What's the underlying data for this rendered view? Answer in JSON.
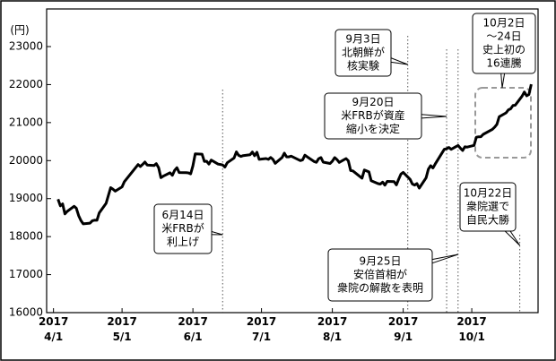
{
  "chart_data": {
    "type": "line",
    "y_label": "(円)",
    "color": "#000000",
    "x": [
      "2017-04-03",
      "2017-04-04",
      "2017-04-05",
      "2017-04-06",
      "2017-04-07",
      "2017-04-10",
      "2017-04-11",
      "2017-04-12",
      "2017-04-13",
      "2017-04-14",
      "2017-04-17",
      "2017-04-18",
      "2017-04-19",
      "2017-04-20",
      "2017-04-21",
      "2017-04-24",
      "2017-04-25",
      "2017-04-26",
      "2017-04-27",
      "2017-04-28",
      "2017-05-01",
      "2017-05-02",
      "2017-05-08",
      "2017-05-09",
      "2017-05-10",
      "2017-05-11",
      "2017-05-12",
      "2017-05-15",
      "2017-05-16",
      "2017-05-17",
      "2017-05-18",
      "2017-05-19",
      "2017-05-22",
      "2017-05-23",
      "2017-05-24",
      "2017-05-25",
      "2017-05-26",
      "2017-05-29",
      "2017-05-30",
      "2017-05-31",
      "2017-06-01",
      "2017-06-02",
      "2017-06-05",
      "2017-06-06",
      "2017-06-07",
      "2017-06-08",
      "2017-06-09",
      "2017-06-12",
      "2017-06-13",
      "2017-06-14",
      "2017-06-15",
      "2017-06-16",
      "2017-06-19",
      "2017-06-20",
      "2017-06-21",
      "2017-06-22",
      "2017-06-23",
      "2017-06-26",
      "2017-06-27",
      "2017-06-28",
      "2017-06-29",
      "2017-06-30",
      "2017-07-03",
      "2017-07-04",
      "2017-07-05",
      "2017-07-06",
      "2017-07-07",
      "2017-07-10",
      "2017-07-11",
      "2017-07-12",
      "2017-07-13",
      "2017-07-14",
      "2017-07-18",
      "2017-07-19",
      "2017-07-20",
      "2017-07-21",
      "2017-07-24",
      "2017-07-25",
      "2017-07-26",
      "2017-07-27",
      "2017-07-28",
      "2017-07-31",
      "2017-08-01",
      "2017-08-02",
      "2017-08-03",
      "2017-08-04",
      "2017-08-07",
      "2017-08-08",
      "2017-08-09",
      "2017-08-10",
      "2017-08-14",
      "2017-08-15",
      "2017-08-16",
      "2017-08-17",
      "2017-08-18",
      "2017-08-21",
      "2017-08-22",
      "2017-08-23",
      "2017-08-24",
      "2017-08-25",
      "2017-08-28",
      "2017-08-29",
      "2017-08-30",
      "2017-08-31",
      "2017-09-01",
      "2017-09-04",
      "2017-09-05",
      "2017-09-06",
      "2017-09-07",
      "2017-09-08",
      "2017-09-11",
      "2017-09-12",
      "2017-09-13",
      "2017-09-14",
      "2017-09-15",
      "2017-09-19",
      "2017-09-20",
      "2017-09-21",
      "2017-09-22",
      "2017-09-25",
      "2017-09-26",
      "2017-09-27",
      "2017-09-28",
      "2017-09-29",
      "2017-10-02",
      "2017-10-03",
      "2017-10-04",
      "2017-10-05",
      "2017-10-06",
      "2017-10-10",
      "2017-10-11",
      "2017-10-12",
      "2017-10-13",
      "2017-10-16",
      "2017-10-17",
      "2017-10-18",
      "2017-10-19",
      "2017-10-20",
      "2017-10-23",
      "2017-10-24",
      "2017-10-25",
      "2017-10-26",
      "2017-10-27"
    ],
    "values": [
      18983,
      18810,
      18861,
      18597,
      18664,
      18797,
      18747,
      18552,
      18426,
      18335,
      18355,
      18418,
      18432,
      18430,
      18620,
      18875,
      19079,
      19289,
      19251,
      19196,
      19310,
      19445,
      19895,
      19843,
      19900,
      19961,
      19883,
      19869,
      19919,
      19814,
      19553,
      19590,
      19678,
      19613,
      19742,
      19813,
      19686,
      19682,
      19677,
      19650,
      19860,
      20177,
      20170,
      19979,
      19984,
      19909,
      20013,
      19908,
      19898,
      19883,
      19831,
      19943,
      20067,
      20230,
      20138,
      20110,
      20132,
      20153,
      20225,
      20130,
      20220,
      20033,
      20055,
      20032,
      20081,
      20032,
      19929,
      20080,
      20195,
      20098,
      20099,
      20118,
      19999,
      20020,
      20144,
      20099,
      19975,
      19955,
      20050,
      20079,
      19959,
      19925,
      19985,
      20080,
      20029,
      19952,
      20055,
      19996,
      19738,
      19729,
      19537,
      19753,
      19729,
      19702,
      19470,
      19393,
      19383,
      19434,
      19353,
      19452,
      19449,
      19362,
      19506,
      19646,
      19691,
      19508,
      19385,
      19357,
      19396,
      19275,
      19545,
      19776,
      19865,
      19807,
      19909,
      20299,
      20310,
      20347,
      20296,
      20398,
      20330,
      20267,
      20363,
      20356,
      20400,
      20614,
      20626,
      20628,
      20691,
      20823,
      20881,
      20954,
      21155,
      21255,
      21336,
      21363,
      21448,
      21457,
      21697,
      21805,
      21707,
      21739,
      22008
    ],
    "xlim": [
      "2017-03-29",
      "2017-10-30"
    ],
    "xticks": [
      {
        "value": "2017-04-01",
        "label": "2017\n4/1"
      },
      {
        "value": "2017-05-01",
        "label": "2017\n5/1"
      },
      {
        "value": "2017-06-01",
        "label": "2017\n6/1"
      },
      {
        "value": "2017-07-01",
        "label": "2017\n7/1"
      },
      {
        "value": "2017-08-01",
        "label": "2017\n8/1"
      },
      {
        "value": "2017-09-01",
        "label": "2017\n9/1"
      },
      {
        "value": "2017-10-01",
        "label": "2017\n10/1"
      }
    ],
    "ylim": [
      16000,
      23000
    ],
    "yticks": [
      16000,
      17000,
      18000,
      19000,
      20000,
      21000,
      22000,
      23000
    ],
    "annotations": [
      {
        "date": "2017-06-14",
        "lines": [
          "6月14日",
          "米FRBが",
          "利上げ"
        ]
      },
      {
        "date": "2017-09-03",
        "lines": [
          "9月3日",
          "北朝鮮が",
          "核実験"
        ]
      },
      {
        "date": "2017-09-20",
        "lines": [
          "9月20日",
          "米FRBが資産",
          "縮小を決定"
        ]
      },
      {
        "date": "2017-09-25",
        "lines": [
          "9月25日",
          "安倍首相が",
          "衆院の解散を表明"
        ]
      },
      {
        "date": "2017-10-22",
        "lines": [
          "10月22日",
          "衆院選で",
          "自民大勝"
        ]
      },
      {
        "lines": [
          "10月2日",
          "～24日",
          "史上初の",
          "16連騰"
        ]
      }
    ]
  }
}
